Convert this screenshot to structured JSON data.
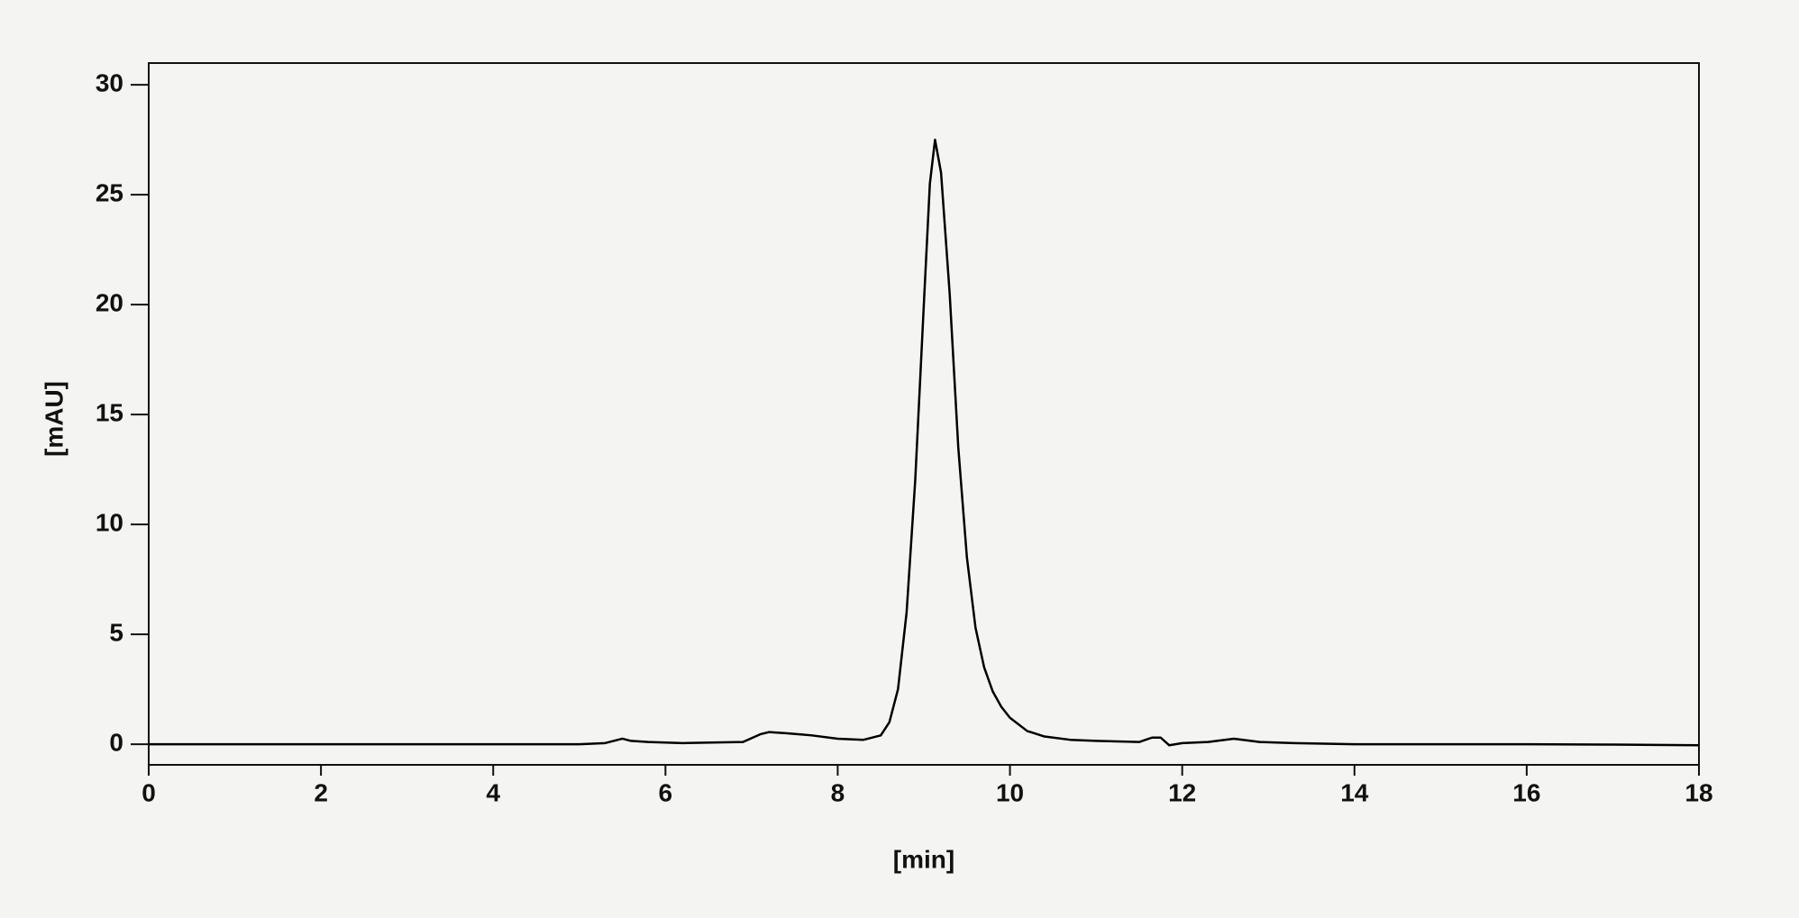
{
  "chart_data": {
    "type": "line",
    "x_label": "[min]",
    "y_label": "[mAU]",
    "xlim": [
      0,
      18
    ],
    "ylim": [
      -0.94,
      30.99
    ],
    "xticks": [
      0,
      2,
      4,
      6,
      8,
      10,
      12,
      14,
      16,
      18
    ],
    "yticks": [
      0,
      5,
      10,
      15,
      20,
      25,
      30
    ],
    "grid": false,
    "series": [
      {
        "color": "#000000",
        "x": [
          0,
          1,
          2,
          3,
          4,
          5,
          5.3,
          5.5,
          5.6,
          5.8,
          6.2,
          6.6,
          6.9,
          7.1,
          7.2,
          7.4,
          7.7,
          8.0,
          8.3,
          8.5,
          8.6,
          8.7,
          8.8,
          8.9,
          9.0,
          9.07,
          9.13,
          9.2,
          9.3,
          9.4,
          9.5,
          9.6,
          9.7,
          9.8,
          9.9,
          10.0,
          10.2,
          10.4,
          10.7,
          11.0,
          11.5,
          11.65,
          11.75,
          11.85,
          12.0,
          12.3,
          12.6,
          12.9,
          13.3,
          14,
          15,
          16,
          17,
          18
        ],
        "values": [
          0,
          0,
          0,
          0,
          0,
          0,
          0.05,
          0.25,
          0.15,
          0.1,
          0.05,
          0.08,
          0.1,
          0.45,
          0.55,
          0.5,
          0.4,
          0.25,
          0.2,
          0.4,
          1.0,
          2.5,
          6,
          12,
          20,
          25.5,
          27.5,
          26,
          20.5,
          13.5,
          8.5,
          5.3,
          3.5,
          2.4,
          1.7,
          1.2,
          0.6,
          0.35,
          0.2,
          0.15,
          0.1,
          0.3,
          0.3,
          -0.05,
          0.05,
          0.1,
          0.25,
          0.1,
          0.05,
          0,
          0,
          0,
          -0.02,
          -0.05
        ]
      }
    ]
  }
}
